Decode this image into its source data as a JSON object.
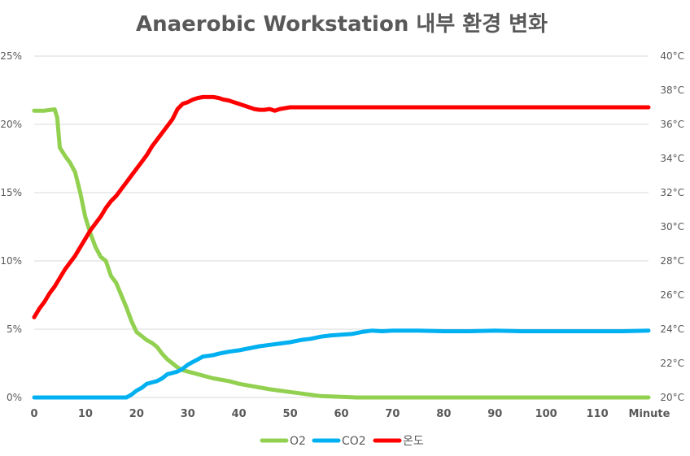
{
  "chart_data": {
    "type": "line",
    "title": "Anaerobic Workstation 내부 환경 변화",
    "xlabel": "Minute",
    "x_ticks": [
      "0",
      "10",
      "20",
      "30",
      "40",
      "50",
      "60",
      "70",
      "80",
      "90",
      "100",
      "110"
    ],
    "xlim": [
      0,
      120
    ],
    "y_left": {
      "ticks": [
        "0%",
        "5%",
        "10%",
        "15%",
        "20%",
        "25%"
      ],
      "ylim": [
        0,
        25
      ],
      "unit": "%"
    },
    "y_right": {
      "ticks": [
        "20°C",
        "22°C",
        "24°C",
        "26°C",
        "28°C",
        "30°C",
        "32°C",
        "34°C",
        "36°C",
        "38°C",
        "40°C"
      ],
      "ylim": [
        20,
        40
      ],
      "unit": "°C"
    },
    "grid": true,
    "legend_position": "bottom",
    "series": [
      {
        "name": "O2",
        "axis": "left",
        "color": "#92d050",
        "x": [
          0,
          2,
          4,
          4.5,
          5,
          6,
          7,
          8,
          9,
          10,
          11,
          12,
          13,
          14,
          15,
          16,
          17,
          18,
          19,
          20,
          21,
          22,
          23,
          24,
          25,
          26,
          27,
          28,
          29,
          30,
          32,
          35,
          38,
          40,
          43,
          46,
          50,
          53,
          56,
          60,
          63,
          70,
          80,
          90,
          100,
          110,
          120
        ],
        "y": [
          21,
          21,
          21.1,
          20.5,
          18.3,
          17.7,
          17.2,
          16.5,
          15,
          13.2,
          12,
          11,
          10.3,
          10,
          8.9,
          8.4,
          7.5,
          6.6,
          5.6,
          4.8,
          4.5,
          4.2,
          4,
          3.7,
          3.2,
          2.8,
          2.5,
          2.2,
          2.0,
          1.9,
          1.7,
          1.4,
          1.2,
          1.0,
          0.8,
          0.6,
          0.4,
          0.25,
          0.1,
          0.05,
          0,
          0,
          0,
          0,
          0,
          0,
          0
        ]
      },
      {
        "name": "CO2",
        "axis": "left",
        "color": "#00b0f0",
        "x": [
          0,
          10,
          18,
          19,
          20,
          21,
          22,
          23,
          24,
          25,
          26,
          27,
          28,
          29,
          30,
          31,
          32,
          33,
          34,
          35,
          36,
          38,
          40,
          42,
          44,
          46,
          48,
          50,
          52,
          54,
          56,
          58,
          60,
          62,
          64,
          66,
          68,
          70,
          75,
          80,
          85,
          90,
          95,
          100,
          105,
          110,
          115,
          120
        ],
        "y": [
          0,
          0,
          0,
          0.2,
          0.5,
          0.7,
          1,
          1.1,
          1.2,
          1.4,
          1.7,
          1.8,
          1.9,
          2.1,
          2.4,
          2.6,
          2.8,
          3,
          3.05,
          3.1,
          3.2,
          3.35,
          3.45,
          3.6,
          3.75,
          3.85,
          3.95,
          4.05,
          4.2,
          4.3,
          4.45,
          4.55,
          4.6,
          4.65,
          4.8,
          4.9,
          4.85,
          4.9,
          4.9,
          4.85,
          4.85,
          4.9,
          4.85,
          4.85,
          4.85,
          4.85,
          4.85,
          4.9
        ]
      },
      {
        "name": "온도",
        "axis": "right",
        "color": "#ff0000",
        "x": [
          0,
          1,
          2,
          3,
          4,
          5,
          6,
          7,
          8,
          9,
          10,
          11,
          12,
          13,
          14,
          15,
          16,
          17,
          18,
          19,
          20,
          21,
          22,
          23,
          24,
          25,
          26,
          27,
          28,
          29,
          30,
          31,
          32,
          33,
          34,
          35,
          36,
          37,
          38,
          39,
          40,
          41,
          42,
          43,
          44,
          45,
          46,
          47,
          48,
          50,
          55,
          60,
          65,
          70,
          75,
          80,
          85,
          90,
          95,
          100,
          105,
          110,
          115,
          120
        ],
        "y": [
          24.7,
          25.2,
          25.6,
          26.1,
          26.5,
          27,
          27.5,
          27.9,
          28.3,
          28.8,
          29.3,
          29.8,
          30.2,
          30.6,
          31.1,
          31.5,
          31.8,
          32.2,
          32.6,
          33,
          33.4,
          33.8,
          34.2,
          34.7,
          35.1,
          35.5,
          35.9,
          36.3,
          36.9,
          37.2,
          37.3,
          37.45,
          37.55,
          37.6,
          37.6,
          37.6,
          37.55,
          37.45,
          37.4,
          37.3,
          37.2,
          37.1,
          37,
          36.9,
          36.85,
          36.85,
          36.9,
          36.8,
          36.9,
          37,
          37,
          37,
          37,
          37,
          37,
          37,
          37,
          37,
          37,
          37,
          37,
          37,
          37,
          37
        ]
      }
    ]
  }
}
